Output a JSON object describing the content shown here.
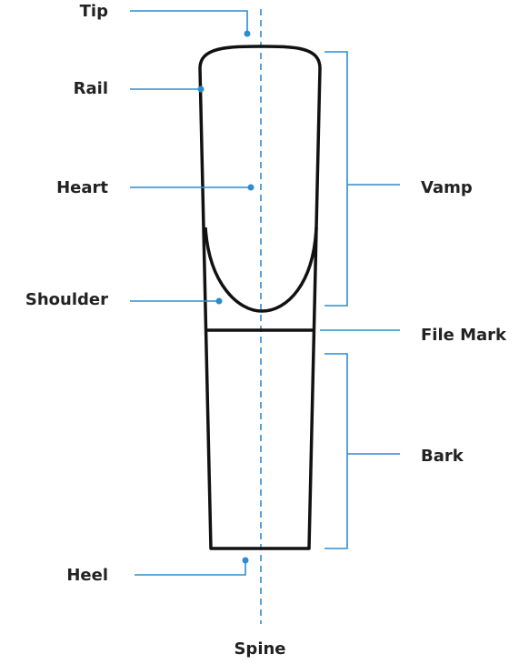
{
  "left_labels": [
    "Tip",
    "Rail",
    "Heart",
    "Shoulder",
    "Heel"
  ],
  "right_labels": [
    "Vamp",
    "File Mark",
    "Bark"
  ],
  "axis_label": "Spine"
}
